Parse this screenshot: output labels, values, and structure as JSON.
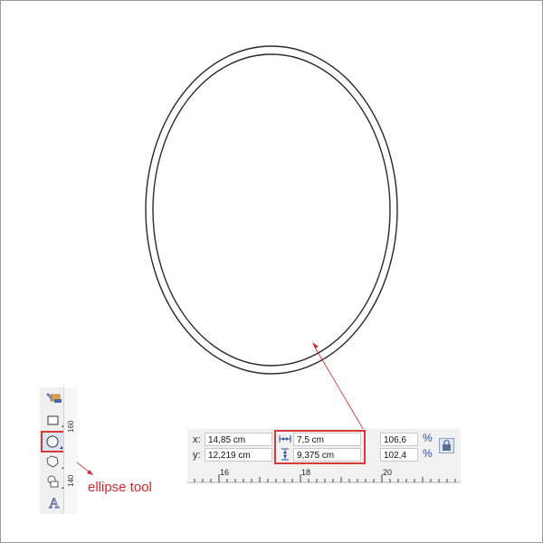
{
  "vertical_ruler": {
    "label_160": "160",
    "label_140": "140"
  },
  "properties": {
    "x_label": "x:",
    "x_value": "14,85 cm",
    "y_label": "y:",
    "y_value": "12,219 cm",
    "width_value": "7,5 cm",
    "height_value": "9,375 cm",
    "scale_x": "106,6",
    "scale_y": "102,4",
    "percent_symbol": "%"
  },
  "ruler": {
    "ticks": [
      "16",
      "18",
      "20"
    ]
  },
  "annotation": {
    "caption": "ellipse tool",
    "color": "#d0282e"
  },
  "tools": [
    "shape-fill-icon",
    "rectangle-tool-icon",
    "ellipse-tool-icon",
    "polygon-tool-icon",
    "basic-shapes-icon",
    "text-tool-icon"
  ]
}
